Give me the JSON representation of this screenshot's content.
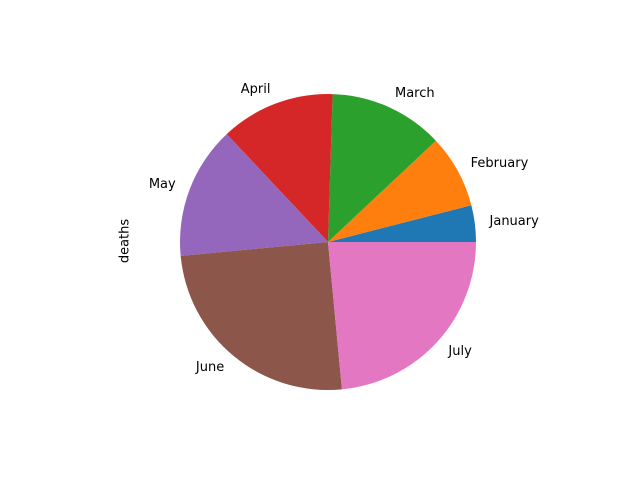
{
  "chart_data": {
    "type": "pie",
    "ylabel": "deaths",
    "start_angle": 0,
    "direction": "counterclockwise",
    "categories": [
      "January",
      "February",
      "March",
      "April",
      "May",
      "June",
      "July"
    ],
    "values": [
      4,
      8,
      12.5,
      12.5,
      14.5,
      25,
      23.5
    ],
    "colors": [
      "#1f77b4",
      "#ff7f0e",
      "#2ca02c",
      "#d62728",
      "#9467bd",
      "#8c564b",
      "#e377c2"
    ]
  }
}
